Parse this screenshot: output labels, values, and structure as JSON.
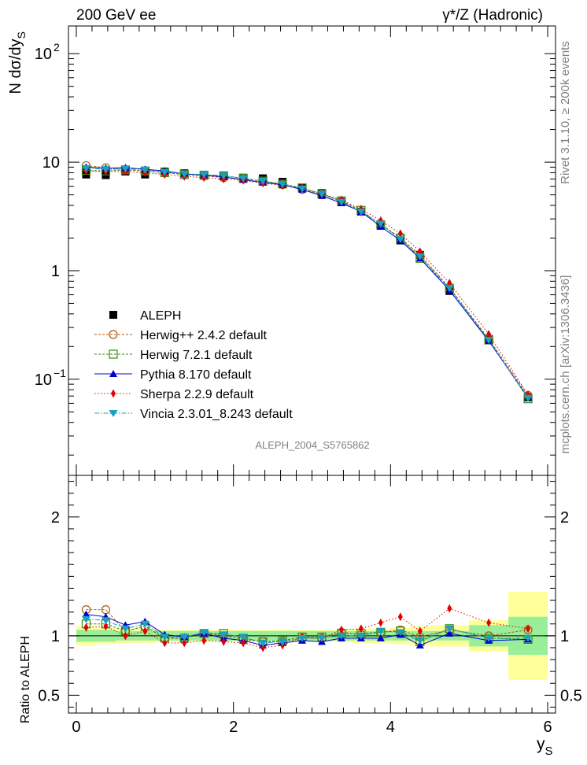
{
  "header": {
    "left_label": "200 GeV ee",
    "right_label": "γ*/Z (Hadronic)",
    "analysis_id": "ALEPH_2004_S5765862"
  },
  "side_text": {
    "rivet": "Rivet 3.1.10, ≥ 200k events",
    "mcplots": "mcplots.cern.ch [arXiv:1306.3436]"
  },
  "chart_data": [
    {
      "type": "line",
      "yscale": "log",
      "ylabel": "N dσ/dy_S",
      "ylim": [
        0.013,
        180
      ],
      "xlim": [
        -0.1,
        6.1
      ],
      "yticks": [
        {
          "v": 0.1,
          "base": "10",
          "exp": "−1"
        },
        {
          "v": 1,
          "base": "1",
          "exp": ""
        },
        {
          "v": 10,
          "base": "10",
          "exp": ""
        },
        {
          "v": 100,
          "base": "10",
          "exp": "2"
        }
      ],
      "x": [
        0.125,
        0.375,
        0.625,
        0.875,
        1.125,
        1.375,
        1.625,
        1.875,
        2.125,
        2.375,
        2.625,
        2.875,
        3.125,
        3.375,
        3.625,
        3.875,
        4.125,
        4.375,
        4.75,
        5.25,
        5.75
      ],
      "data": {
        "name": "ALEPH",
        "values": [
          7.7,
          7.6,
          8.2,
          7.7,
          8.2,
          7.9,
          7.5,
          7.4,
          7.2,
          7.1,
          6.6,
          5.8,
          5.2,
          4.3,
          3.5,
          2.6,
          1.9,
          1.4,
          0.65,
          0.235,
          0.068
        ]
      },
      "series": [
        {
          "name": "Herwig++ 2.4.2 default",
          "color": "#b05a10",
          "dash": "3,2",
          "marker": "circle-open",
          "values": [
            9.3,
            8.9,
            8.5,
            8.3,
            8.0,
            7.7,
            7.5,
            7.2,
            7.0,
            6.7,
            6.2,
            5.6,
            5.0,
            4.4,
            3.5,
            2.7,
            2.0,
            1.4,
            0.7,
            0.235,
            0.071
          ]
        },
        {
          "name": "Herwig 7.2.1 default",
          "color": "#3a8a10",
          "dash": "3,2",
          "marker": "square-open",
          "values": [
            8.4,
            8.3,
            8.5,
            8.3,
            8.0,
            7.7,
            7.6,
            7.5,
            7.1,
            6.7,
            6.3,
            5.8,
            5.1,
            4.4,
            3.6,
            2.65,
            2.0,
            1.3,
            0.69,
            0.23,
            0.066
          ]
        },
        {
          "name": "Pythia 8.170 default",
          "color": "#0000cc",
          "dash": "",
          "marker": "triangle-up",
          "values": [
            9.0,
            8.8,
            8.9,
            8.6,
            8.3,
            7.8,
            7.6,
            7.3,
            6.9,
            6.5,
            6.2,
            5.6,
            4.9,
            4.2,
            3.5,
            2.55,
            1.9,
            1.3,
            0.66,
            0.225,
            0.068
          ]
        },
        {
          "name": "Sherpa 2.2.9 default",
          "color": "#e00000",
          "dash": "1.5,2.5",
          "marker": "diamond",
          "values": [
            8.3,
            8.2,
            8.2,
            8.0,
            7.7,
            7.4,
            7.2,
            7.0,
            6.8,
            6.4,
            6.1,
            5.8,
            5.1,
            4.5,
            3.7,
            2.9,
            2.2,
            1.5,
            0.77,
            0.26,
            0.072
          ]
        },
        {
          "name": "Vincia 2.3.01_8.243 default",
          "color": "#1aa0c0",
          "dash": "6,2,1.5,2",
          "marker": "triangle-down",
          "values": [
            8.8,
            8.6,
            8.7,
            8.5,
            8.1,
            7.8,
            7.7,
            7.5,
            7.1,
            6.7,
            6.3,
            5.7,
            5.1,
            4.3,
            3.5,
            2.7,
            1.95,
            1.35,
            0.69,
            0.23,
            0.067
          ]
        }
      ]
    },
    {
      "type": "line",
      "ylabel": "Ratio to ALEPH",
      "xlabel": "y_S",
      "ylim": [
        0.35,
        2.35
      ],
      "xlim": [
        -0.1,
        6.1
      ],
      "yticks": [
        0.5,
        1,
        2
      ],
      "xticks": [
        0,
        2,
        4,
        6
      ],
      "bin_edges": [
        0,
        0.25,
        0.5,
        0.75,
        1.0,
        1.25,
        1.5,
        1.75,
        2.0,
        2.25,
        2.5,
        2.75,
        3.0,
        3.25,
        3.5,
        3.75,
        4.0,
        4.25,
        4.5,
        5.0,
        5.5,
        6.0
      ],
      "band_green": [
        0.05,
        0.05,
        0.04,
        0.04,
        0.04,
        0.04,
        0.04,
        0.04,
        0.04,
        0.04,
        0.04,
        0.04,
        0.04,
        0.04,
        0.04,
        0.04,
        0.04,
        0.04,
        0.04,
        0.09,
        0.16
      ],
      "band_yellow": [
        0.08,
        0.07,
        0.06,
        0.06,
        0.05,
        0.05,
        0.05,
        0.05,
        0.05,
        0.05,
        0.05,
        0.05,
        0.05,
        0.05,
        0.06,
        0.06,
        0.07,
        0.08,
        0.09,
        0.13,
        0.37
      ],
      "x": [
        0.125,
        0.375,
        0.625,
        0.875,
        1.125,
        1.375,
        1.625,
        1.875,
        2.125,
        2.375,
        2.625,
        2.875,
        3.125,
        3.375,
        3.625,
        3.875,
        4.125,
        4.375,
        4.75,
        5.25,
        5.75
      ],
      "series": [
        {
          "name": "Herwig++ 2.4.2 default",
          "values": [
            1.22,
            1.22,
            1.04,
            1.08,
            0.98,
            0.98,
            1.02,
            1.0,
            0.97,
            0.95,
            0.95,
            0.98,
            0.98,
            1.03,
            1.01,
            1.03,
            1.05,
            0.99,
            1.05,
            1.0,
            1.05
          ]
        },
        {
          "name": "Herwig 7.2.1 default",
          "values": [
            1.1,
            1.1,
            1.04,
            1.08,
            0.98,
            0.98,
            1.02,
            1.02,
            0.98,
            0.95,
            0.96,
            0.99,
            0.99,
            1.02,
            1.02,
            1.03,
            1.04,
            0.95,
            1.06,
            0.98,
            0.97
          ]
        },
        {
          "name": "Pythia 8.170 default",
          "values": [
            1.18,
            1.16,
            1.09,
            1.12,
            1.01,
            0.99,
            1.02,
            0.98,
            0.96,
            0.92,
            0.94,
            0.96,
            0.95,
            0.98,
            0.98,
            0.98,
            1.01,
            0.92,
            1.02,
            0.96,
            0.97
          ]
        },
        {
          "name": "Sherpa 2.2.9 default",
          "values": [
            1.07,
            1.08,
            1.0,
            1.04,
            0.94,
            0.94,
            0.96,
            0.95,
            0.94,
            0.9,
            0.92,
            0.99,
            0.98,
            1.05,
            1.06,
            1.11,
            1.16,
            1.04,
            1.23,
            1.11,
            1.06
          ]
        },
        {
          "name": "Vincia 2.3.01_8.243 default",
          "values": [
            1.14,
            1.13,
            1.06,
            1.1,
            0.99,
            0.99,
            1.03,
            1.01,
            0.99,
            0.94,
            0.95,
            0.98,
            0.98,
            1.0,
            1.0,
            1.04,
            1.03,
            0.96,
            1.06,
            0.98,
            0.98
          ]
        }
      ]
    }
  ]
}
